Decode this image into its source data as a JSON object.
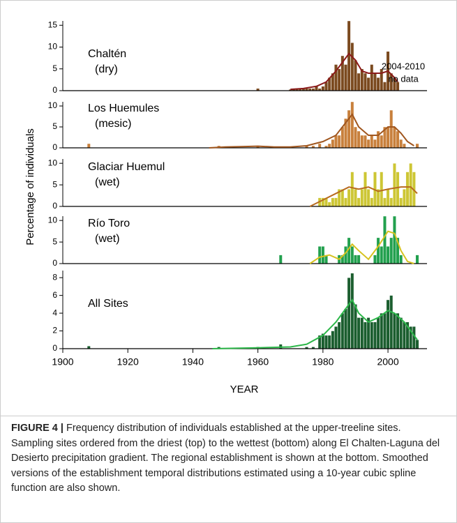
{
  "chart_data": [
    {
      "type": "bar",
      "title": "Chaltén",
      "subtitle": "(dry)",
      "ylabel": "Percentage of individuals",
      "annotation": [
        "2004-2010",
        "no data"
      ],
      "ylim": [
        0,
        16
      ],
      "yticks": [
        0,
        5,
        10,
        15
      ],
      "color": "#7b4a1f",
      "x": [
        1960,
        1970,
        1971,
        1972,
        1973,
        1974,
        1975,
        1976,
        1977,
        1978,
        1979,
        1980,
        1981,
        1982,
        1983,
        1984,
        1985,
        1986,
        1987,
        1988,
        1989,
        1990,
        1991,
        1992,
        1993,
        1994,
        1995,
        1996,
        1997,
        1998,
        1999,
        2000,
        2001,
        2002,
        2003
      ],
      "values": [
        0.5,
        0.3,
        0.3,
        0.5,
        0.5,
        0.5,
        0.5,
        0.5,
        0.5,
        1,
        0.5,
        1,
        2,
        3,
        4,
        6,
        5,
        8,
        6,
        16,
        11,
        7,
        4,
        5,
        4,
        3,
        6,
        4,
        3,
        5,
        2,
        9,
        4,
        3,
        2
      ],
      "line": {
        "color": "#8b1a1a",
        "x": [
          1970,
          1974,
          1978,
          1981,
          1984,
          1986,
          1988,
          1990,
          1992,
          1994,
          1996,
          1998,
          2000,
          2002,
          2003
        ],
        "values": [
          0.3,
          0.5,
          1,
          2,
          4.5,
          6.5,
          8.5,
          7,
          4.5,
          4,
          4,
          4,
          4.5,
          3,
          2
        ]
      }
    },
    {
      "type": "bar",
      "title": "Los Huemules",
      "subtitle": "(mesic)",
      "ylim": [
        0,
        11
      ],
      "yticks": [
        0,
        5,
        10
      ],
      "color": "#c8803c",
      "x": [
        1908,
        1948,
        1960,
        1975,
        1977,
        1979,
        1981,
        1982,
        1983,
        1984,
        1985,
        1986,
        1987,
        1988,
        1989,
        1990,
        1991,
        1992,
        1993,
        1994,
        1995,
        1996,
        1997,
        1998,
        1999,
        2000,
        2001,
        2002,
        2003,
        2004,
        2005,
        2009
      ],
      "values": [
        1,
        0.5,
        0.5,
        0.5,
        0.5,
        1,
        0.5,
        1,
        2,
        3,
        3,
        5,
        7,
        9,
        11,
        5,
        4,
        3,
        3,
        2,
        3,
        2,
        4,
        3,
        5,
        5,
        9,
        5,
        4,
        2,
        1,
        1
      ],
      "line": {
        "color": "#a0561e",
        "x": [
          1945,
          1950,
          1955,
          1960,
          1965,
          1970,
          1975,
          1980,
          1984,
          1987,
          1989,
          1991,
          1994,
          1997,
          2000,
          2002,
          2004,
          2006,
          2008
        ],
        "values": [
          0,
          0.2,
          0.3,
          0.4,
          0.2,
          0.2,
          0.5,
          1.5,
          3,
          6,
          8,
          5,
          3,
          3,
          5,
          5,
          3.5,
          1.5,
          0.5
        ]
      }
    },
    {
      "type": "bar",
      "title": "Glaciar Huemul",
      "subtitle": "(wet)",
      "ylim": [
        0,
        11
      ],
      "yticks": [
        0,
        5,
        10
      ],
      "color": "#cdc634",
      "x": [
        1979,
        1980,
        1981,
        1982,
        1983,
        1984,
        1985,
        1986,
        1987,
        1988,
        1989,
        1990,
        1991,
        1992,
        1993,
        1994,
        1995,
        1996,
        1997,
        1998,
        1999,
        2000,
        2001,
        2002,
        2003,
        2004,
        2005,
        2006,
        2007,
        2008
      ],
      "values": [
        2,
        2,
        2,
        1,
        2,
        2,
        4,
        4,
        2,
        4,
        8,
        4,
        2,
        4,
        8,
        4,
        2,
        8,
        4,
        8,
        2,
        4,
        2,
        10,
        8,
        2,
        4,
        8,
        10,
        8
      ],
      "line": {
        "color": "#b86a1e",
        "x": [
          1976,
          1980,
          1984,
          1988,
          1991,
          1994,
          1997,
          2000,
          2004,
          2007,
          2009
        ],
        "values": [
          0,
          1.5,
          3,
          4.5,
          4,
          4.5,
          3.5,
          4,
          4.5,
          4.5,
          3
        ]
      }
    },
    {
      "type": "bar",
      "title": "Río Toro",
      "subtitle": "(wet)",
      "ylim": [
        0,
        11
      ],
      "yticks": [
        0,
        5,
        10
      ],
      "color": "#22a04e",
      "x": [
        1967,
        1979,
        1980,
        1981,
        1985,
        1986,
        1987,
        1988,
        1989,
        1990,
        1991,
        1996,
        1997,
        1998,
        1999,
        2000,
        2001,
        2002,
        2003,
        2004,
        2009
      ],
      "values": [
        2,
        4,
        4,
        2,
        2,
        2,
        4,
        6,
        4,
        2,
        2,
        2,
        6,
        4,
        11,
        4,
        6,
        11,
        6,
        2,
        2
      ],
      "line": {
        "color": "#d6c21e",
        "x": [
          1976,
          1979,
          1982,
          1985,
          1987,
          1989,
          1991,
          1994,
          1997,
          2000,
          2002,
          2004,
          2006,
          2008
        ],
        "values": [
          0,
          1.5,
          2,
          1,
          2.5,
          4.5,
          3,
          1,
          4,
          7.5,
          7,
          3,
          0.5,
          0
        ]
      }
    },
    {
      "type": "bar",
      "title": "All Sites",
      "xlabel": "YEAR",
      "xlim": [
        1900,
        2012
      ],
      "xticks": [
        1900,
        1920,
        1940,
        1960,
        1980,
        2000
      ],
      "ylim": [
        0,
        8.8
      ],
      "yticks": [
        0,
        2,
        4,
        6,
        8
      ],
      "color": "#1b5e2f",
      "x": [
        1908,
        1948,
        1960,
        1967,
        1975,
        1977,
        1979,
        1980,
        1981,
        1982,
        1983,
        1984,
        1985,
        1986,
        1987,
        1988,
        1989,
        1990,
        1991,
        1992,
        1993,
        1994,
        1995,
        1996,
        1997,
        1998,
        1999,
        2000,
        2001,
        2002,
        2003,
        2004,
        2005,
        2006,
        2007,
        2008,
        2009
      ],
      "values": [
        0.3,
        0.2,
        0.2,
        0.5,
        0.2,
        0.2,
        1.5,
        1.7,
        1.5,
        1.5,
        2,
        2.5,
        3,
        4,
        4.5,
        8,
        8.5,
        5,
        3.5,
        3.5,
        3,
        3.5,
        3,
        3,
        3.5,
        4,
        4,
        5.5,
        6,
        4,
        4,
        3.5,
        3,
        3,
        2.5,
        2.5,
        1
      ],
      "line": {
        "color": "#2db84a",
        "x": [
          1946,
          1960,
          1970,
          1975,
          1980,
          1984,
          1987,
          1989,
          1991,
          1994,
          1997,
          2000,
          2002,
          2005,
          2008,
          2009
        ],
        "values": [
          0,
          0.1,
          0.2,
          0.5,
          1.5,
          3,
          4.5,
          5.5,
          4,
          3,
          3.5,
          4.3,
          4,
          3,
          1.5,
          1
        ]
      }
    }
  ],
  "caption": {
    "label": "FIGURE 4 |",
    "text": "Frequency distribution of individuals established at the upper-treeline sites. Sampling sites ordered from the driest (top) to the wettest (bottom) along El Chalten-Laguna del Desierto precipitation gradient. The regional establishment is shown at the bottom. Smoothed versions of the establishment temporal distributions estimated using a 10-year cubic spline function are also shown."
  }
}
